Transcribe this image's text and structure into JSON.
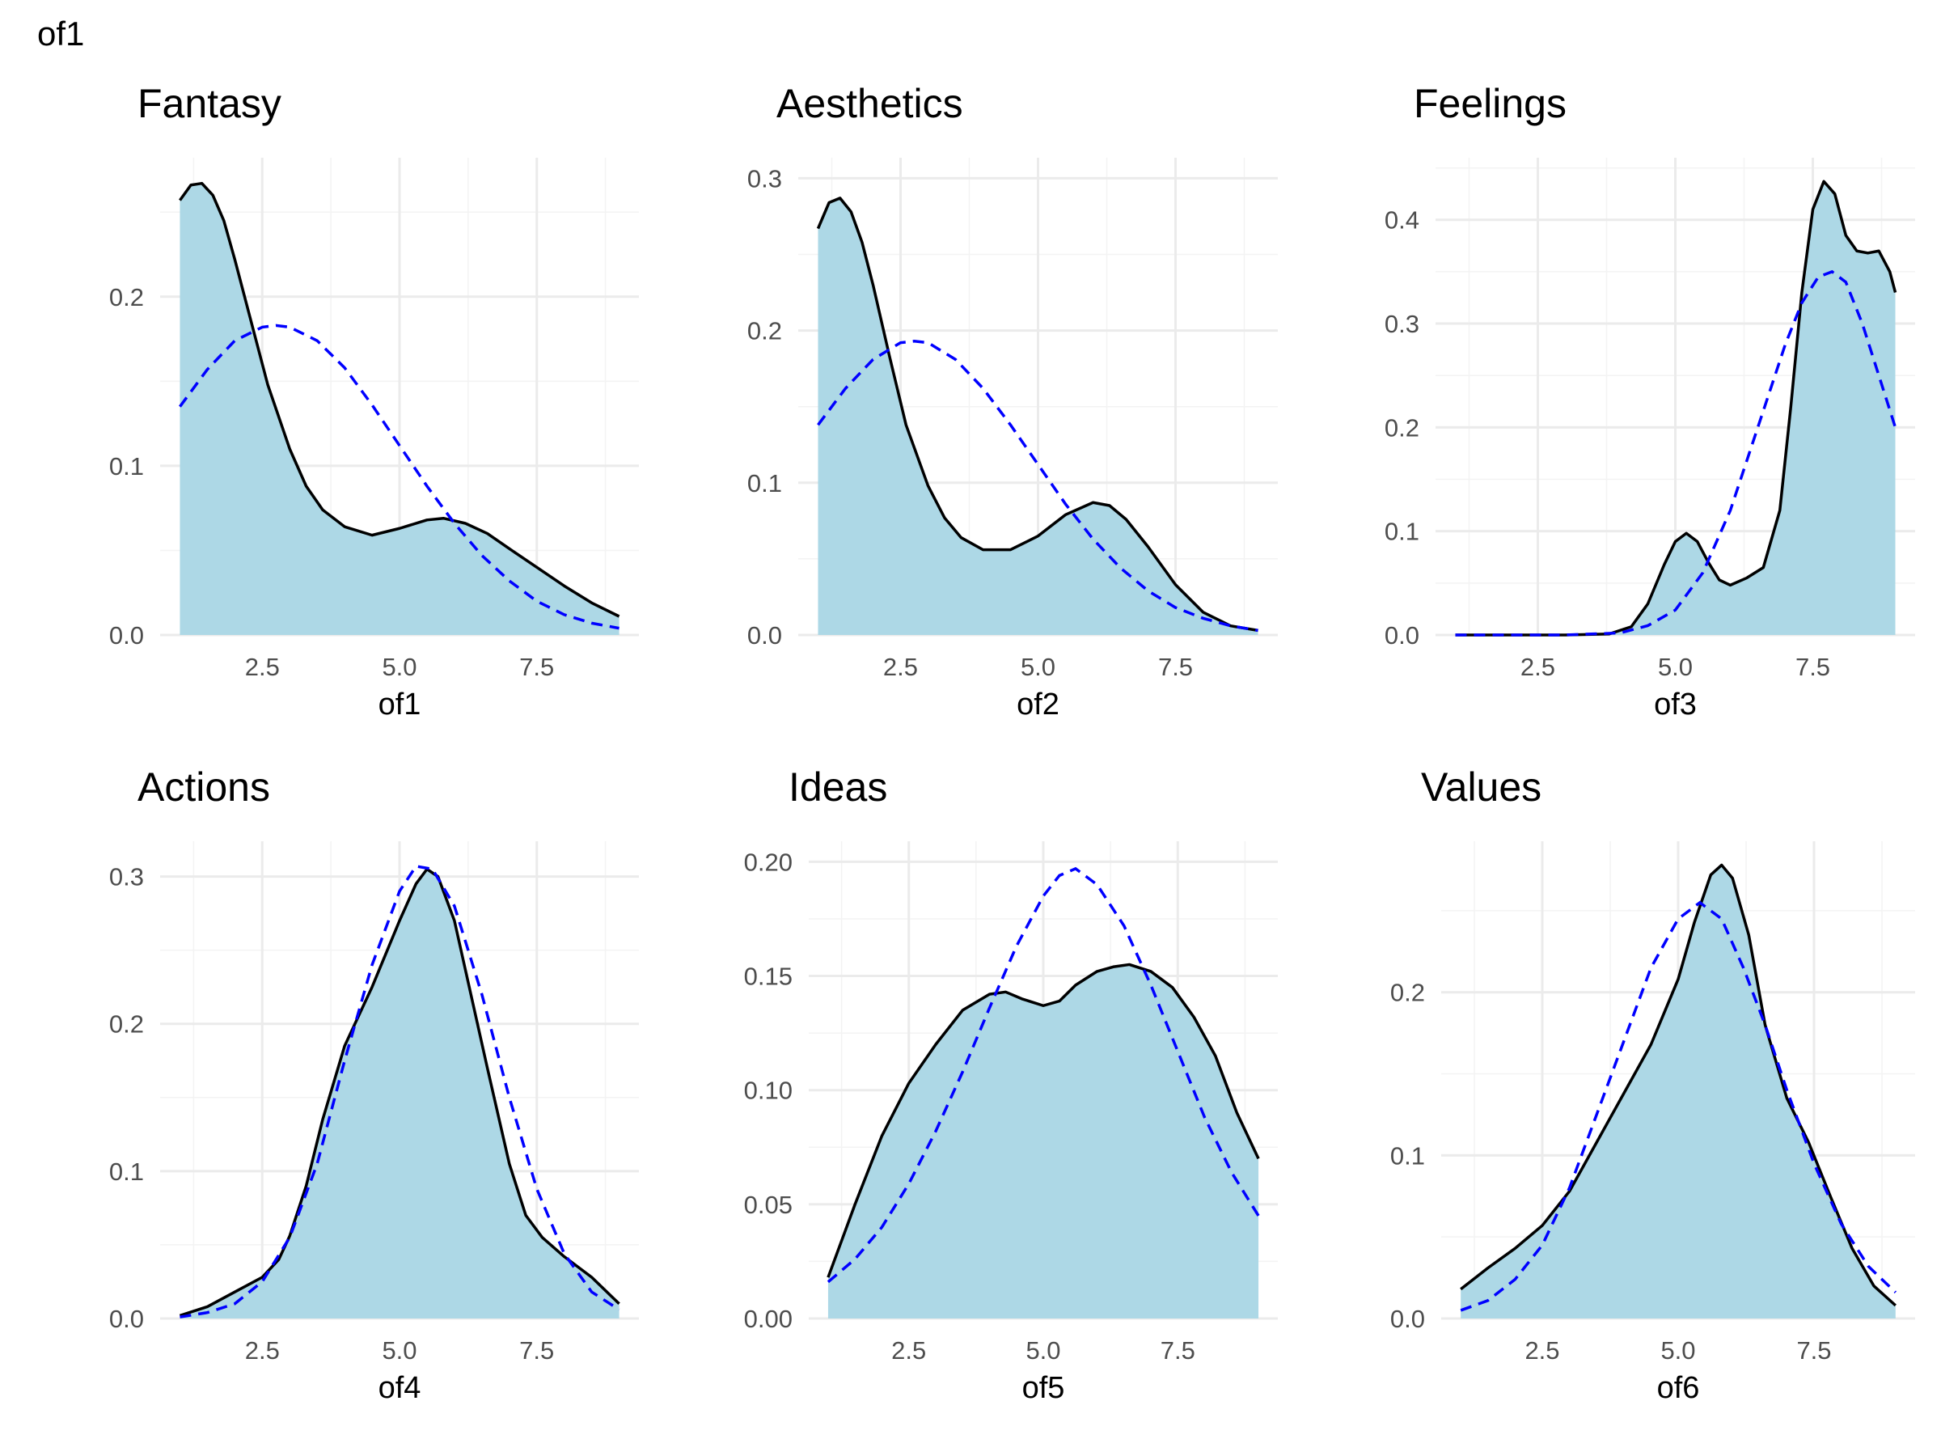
{
  "page_title": "of1",
  "colors": {
    "fill": "#add8e6",
    "density_line": "#000000",
    "normal_line": "#0000ff",
    "grid": "#ebebeb"
  },
  "chart_data": [
    {
      "type": "area",
      "title": "Fantasy",
      "xlabel": "of1",
      "ylabel": "",
      "xlim": [
        1,
        9
      ],
      "ylim": [
        0,
        0.27
      ],
      "grid": true,
      "x_ticks": [
        2.5,
        5.0,
        7.5
      ],
      "x_tick_labels": [
        "2.5",
        "5.0",
        "7.5"
      ],
      "y_ticks": [
        0,
        0.1,
        0.2
      ],
      "y_tick_labels": [
        "0.0",
        "0.1",
        "0.2"
      ],
      "series": [
        {
          "role": "density",
          "style": "solid",
          "x": [
            1.0,
            1.2,
            1.4,
            1.6,
            1.8,
            2.0,
            2.3,
            2.6,
            3.0,
            3.3,
            3.6,
            4.0,
            4.5,
            5.0,
            5.5,
            5.8,
            6.2,
            6.6,
            7.0,
            7.5,
            8.0,
            8.5,
            9.0
          ],
          "y": [
            0.257,
            0.266,
            0.267,
            0.26,
            0.245,
            0.222,
            0.185,
            0.148,
            0.11,
            0.088,
            0.074,
            0.064,
            0.059,
            0.063,
            0.068,
            0.069,
            0.066,
            0.06,
            0.051,
            0.04,
            0.029,
            0.019,
            0.011
          ]
        },
        {
          "role": "normal",
          "style": "dashed",
          "x": [
            1.0,
            1.5,
            2.0,
            2.5,
            2.75,
            3.0,
            3.5,
            4.0,
            4.5,
            5.0,
            5.5,
            6.0,
            6.5,
            7.0,
            7.5,
            8.0,
            8.5,
            9.0
          ],
          "y": [
            0.135,
            0.157,
            0.174,
            0.182,
            0.183,
            0.182,
            0.174,
            0.158,
            0.136,
            0.112,
            0.088,
            0.066,
            0.047,
            0.032,
            0.02,
            0.012,
            0.007,
            0.004
          ]
        }
      ]
    },
    {
      "type": "area",
      "title": "Aesthetics",
      "xlabel": "of2",
      "ylabel": "",
      "xlim": [
        1,
        9
      ],
      "ylim": [
        0,
        0.3
      ],
      "grid": true,
      "x_ticks": [
        2.5,
        5.0,
        7.5
      ],
      "x_tick_labels": [
        "2.5",
        "5.0",
        "7.5"
      ],
      "y_ticks": [
        0,
        0.1,
        0.2,
        0.3
      ],
      "y_tick_labels": [
        "0.0",
        "0.1",
        "0.2",
        "0.3"
      ],
      "series": [
        {
          "role": "density",
          "style": "solid",
          "x": [
            1.0,
            1.2,
            1.4,
            1.6,
            1.8,
            2.0,
            2.3,
            2.6,
            3.0,
            3.3,
            3.6,
            4.0,
            4.5,
            5.0,
            5.5,
            6.0,
            6.3,
            6.6,
            7.0,
            7.5,
            8.0,
            8.5,
            9.0
          ],
          "y": [
            0.267,
            0.284,
            0.287,
            0.278,
            0.258,
            0.23,
            0.183,
            0.138,
            0.098,
            0.077,
            0.064,
            0.056,
            0.056,
            0.065,
            0.079,
            0.087,
            0.085,
            0.076,
            0.058,
            0.033,
            0.015,
            0.006,
            0.003
          ]
        },
        {
          "role": "normal",
          "style": "dashed",
          "x": [
            1.0,
            1.5,
            2.0,
            2.5,
            2.75,
            3.0,
            3.5,
            4.0,
            4.5,
            5.0,
            5.5,
            6.0,
            6.5,
            7.0,
            7.5,
            8.0,
            8.5,
            9.0
          ],
          "y": [
            0.138,
            0.162,
            0.181,
            0.192,
            0.193,
            0.192,
            0.181,
            0.162,
            0.138,
            0.112,
            0.086,
            0.063,
            0.044,
            0.029,
            0.018,
            0.011,
            0.006,
            0.003
          ]
        }
      ]
    },
    {
      "type": "area",
      "title": "Feelings",
      "xlabel": "of3",
      "ylabel": "",
      "xlim": [
        1,
        9
      ],
      "ylim": [
        0,
        0.44
      ],
      "grid": true,
      "x_ticks": [
        2.5,
        5.0,
        7.5
      ],
      "x_tick_labels": [
        "2.5",
        "5.0",
        "7.5"
      ],
      "y_ticks": [
        0,
        0.1,
        0.2,
        0.3,
        0.4
      ],
      "y_tick_labels": [
        "0.0",
        "0.1",
        "0.2",
        "0.3",
        "0.4"
      ],
      "series": [
        {
          "role": "density",
          "style": "solid",
          "x": [
            1.0,
            2.0,
            3.0,
            3.8,
            4.2,
            4.5,
            4.8,
            5.0,
            5.2,
            5.4,
            5.6,
            5.8,
            6.0,
            6.3,
            6.6,
            6.9,
            7.1,
            7.3,
            7.5,
            7.7,
            7.9,
            8.1,
            8.3,
            8.5,
            8.7,
            8.9,
            9.0
          ],
          "y": [
            0,
            0,
            0,
            0.001,
            0.008,
            0.03,
            0.068,
            0.09,
            0.098,
            0.09,
            0.07,
            0.053,
            0.048,
            0.055,
            0.065,
            0.12,
            0.22,
            0.33,
            0.41,
            0.437,
            0.425,
            0.385,
            0.37,
            0.368,
            0.37,
            0.35,
            0.33
          ]
        },
        {
          "role": "normal",
          "style": "dashed",
          "x": [
            1.0,
            3.0,
            4.0,
            4.5,
            5.0,
            5.5,
            6.0,
            6.5,
            7.0,
            7.3,
            7.6,
            7.85,
            8.1,
            8.4,
            8.7,
            9.0
          ],
          "y": [
            0,
            0,
            0.002,
            0.009,
            0.024,
            0.06,
            0.12,
            0.2,
            0.28,
            0.32,
            0.345,
            0.35,
            0.34,
            0.3,
            0.25,
            0.2
          ]
        }
      ]
    },
    {
      "type": "area",
      "title": "Actions",
      "xlabel": "of4",
      "ylabel": "",
      "xlim": [
        1,
        9
      ],
      "ylim": [
        0,
        0.31
      ],
      "grid": true,
      "x_ticks": [
        2.5,
        5.0,
        7.5
      ],
      "x_tick_labels": [
        "2.5",
        "5.0",
        "7.5"
      ],
      "y_ticks": [
        0,
        0.1,
        0.2,
        0.3
      ],
      "y_tick_labels": [
        "0.0",
        "0.1",
        "0.2",
        "0.3"
      ],
      "series": [
        {
          "role": "density",
          "style": "solid",
          "x": [
            1.0,
            1.5,
            2.0,
            2.5,
            2.8,
            3.0,
            3.3,
            3.6,
            4.0,
            4.5,
            5.0,
            5.3,
            5.5,
            5.7,
            6.0,
            6.3,
            6.6,
            7.0,
            7.3,
            7.6,
            8.0,
            8.5,
            9.0
          ],
          "y": [
            0.002,
            0.008,
            0.018,
            0.028,
            0.04,
            0.056,
            0.09,
            0.135,
            0.185,
            0.225,
            0.27,
            0.295,
            0.305,
            0.3,
            0.27,
            0.22,
            0.17,
            0.105,
            0.07,
            0.055,
            0.042,
            0.028,
            0.01
          ]
        },
        {
          "role": "normal",
          "style": "dashed",
          "x": [
            1.0,
            1.5,
            2.0,
            2.5,
            3.0,
            3.5,
            4.0,
            4.5,
            5.0,
            5.3,
            5.6,
            6.0,
            6.5,
            7.0,
            7.5,
            8.0,
            8.5,
            9.0
          ],
          "y": [
            0.001,
            0.004,
            0.01,
            0.025,
            0.055,
            0.105,
            0.175,
            0.24,
            0.29,
            0.307,
            0.305,
            0.28,
            0.22,
            0.15,
            0.088,
            0.044,
            0.018,
            0.006
          ]
        }
      ]
    },
    {
      "type": "area",
      "title": "Ideas",
      "xlabel": "of5",
      "ylabel": "",
      "xlim": [
        1,
        9
      ],
      "ylim": [
        0,
        0.2
      ],
      "grid": true,
      "x_ticks": [
        2.5,
        5.0,
        7.5
      ],
      "x_tick_labels": [
        "2.5",
        "5.0",
        "7.5"
      ],
      "y_ticks": [
        0,
        0.05,
        0.1,
        0.15,
        0.2
      ],
      "y_tick_labels": [
        "0.00",
        "0.05",
        "0.10",
        "0.15",
        "0.20"
      ],
      "series": [
        {
          "role": "density",
          "style": "solid",
          "x": [
            1.0,
            1.5,
            2.0,
            2.5,
            3.0,
            3.5,
            4.0,
            4.3,
            4.6,
            5.0,
            5.3,
            5.6,
            6.0,
            6.3,
            6.6,
            7.0,
            7.4,
            7.8,
            8.2,
            8.6,
            9.0
          ],
          "y": [
            0.018,
            0.05,
            0.08,
            0.103,
            0.12,
            0.135,
            0.142,
            0.143,
            0.14,
            0.137,
            0.139,
            0.146,
            0.152,
            0.154,
            0.155,
            0.152,
            0.145,
            0.132,
            0.115,
            0.09,
            0.07
          ]
        },
        {
          "role": "normal",
          "style": "dashed",
          "x": [
            1.0,
            1.5,
            2.0,
            2.5,
            3.0,
            3.5,
            4.0,
            4.5,
            5.0,
            5.3,
            5.6,
            6.0,
            6.5,
            7.0,
            7.5,
            8.0,
            8.5,
            9.0
          ],
          "y": [
            0.016,
            0.026,
            0.04,
            0.059,
            0.082,
            0.108,
            0.136,
            0.163,
            0.185,
            0.194,
            0.197,
            0.19,
            0.172,
            0.146,
            0.117,
            0.088,
            0.064,
            0.045
          ]
        }
      ]
    },
    {
      "type": "area",
      "title": "Values",
      "xlabel": "of6",
      "ylabel": "",
      "xlim": [
        1,
        9
      ],
      "ylim": [
        0,
        0.28
      ],
      "grid": true,
      "x_ticks": [
        2.5,
        5.0,
        7.5
      ],
      "x_tick_labels": [
        "2.5",
        "5.0",
        "7.5"
      ],
      "y_ticks": [
        0,
        0.1,
        0.2
      ],
      "y_tick_labels": [
        "0.0",
        "0.1",
        "0.2"
      ],
      "series": [
        {
          "role": "density",
          "style": "solid",
          "x": [
            1.0,
            1.5,
            2.0,
            2.5,
            3.0,
            3.5,
            4.0,
            4.5,
            5.0,
            5.3,
            5.6,
            5.8,
            6.0,
            6.3,
            6.6,
            7.0,
            7.4,
            7.8,
            8.2,
            8.6,
            9.0
          ],
          "y": [
            0.018,
            0.031,
            0.043,
            0.057,
            0.078,
            0.108,
            0.138,
            0.168,
            0.208,
            0.243,
            0.272,
            0.278,
            0.27,
            0.235,
            0.18,
            0.135,
            0.108,
            0.075,
            0.043,
            0.02,
            0.008
          ]
        },
        {
          "role": "normal",
          "style": "dashed",
          "x": [
            1.0,
            1.5,
            2.0,
            2.5,
            3.0,
            3.5,
            4.0,
            4.5,
            5.0,
            5.4,
            5.8,
            6.2,
            6.6,
            7.0,
            7.5,
            8.0,
            8.5,
            9.0
          ],
          "y": [
            0.005,
            0.011,
            0.024,
            0.045,
            0.08,
            0.125,
            0.17,
            0.215,
            0.245,
            0.255,
            0.245,
            0.215,
            0.18,
            0.14,
            0.095,
            0.058,
            0.032,
            0.016
          ]
        }
      ]
    }
  ]
}
